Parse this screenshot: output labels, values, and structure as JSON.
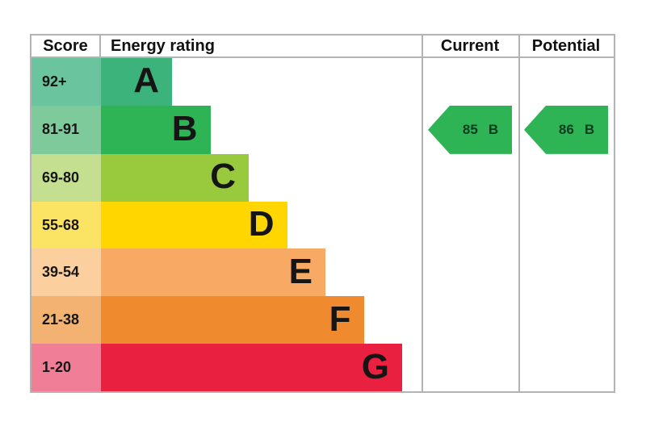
{
  "header": {
    "score": "Score",
    "rating": "Energy rating",
    "current": "Current",
    "potential": "Potential"
  },
  "chart_data": {
    "type": "bar",
    "description": "EPC energy efficiency rating chart with stepped band bars and current/potential rating arrows",
    "bands": [
      {
        "letter": "A",
        "score": "92+",
        "bar_color": "#3cb37a",
        "score_color": "#6ac49d"
      },
      {
        "letter": "B",
        "score": "81-91",
        "bar_color": "#2eb454",
        "score_color": "#7fca9b"
      },
      {
        "letter": "C",
        "score": "69-80",
        "bar_color": "#99ca3d",
        "score_color": "#c3df8f"
      },
      {
        "letter": "D",
        "score": "55-68",
        "bar_color": "#ffd600",
        "score_color": "#fbe464"
      },
      {
        "letter": "E",
        "score": "39-54",
        "bar_color": "#f8aa64",
        "score_color": "#fbcf9e"
      },
      {
        "letter": "F",
        "score": "21-38",
        "bar_color": "#ef8b2e",
        "score_color": "#f3b172"
      },
      {
        "letter": "G",
        "score": "1-20",
        "bar_color": "#e9203f",
        "score_color": "#ef7e96"
      }
    ],
    "current": {
      "value": "85",
      "letter": "B"
    },
    "potential": {
      "value": "86",
      "letter": "B"
    },
    "arrow_color": "#2eb454",
    "arrow_text_color": "#0c3b1f",
    "border_color": "#b3b3b3"
  }
}
